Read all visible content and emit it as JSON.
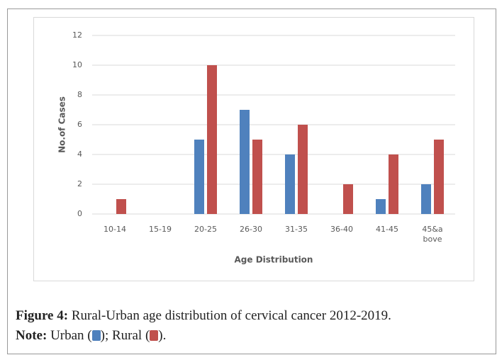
{
  "chart_data": {
    "type": "bar",
    "categories": [
      "10-14",
      "15-19",
      "20-25",
      "26-30",
      "31-35",
      "36-40",
      "41-45",
      "45&a bove"
    ],
    "series": [
      {
        "name": "Urban",
        "color": "#4f81bd",
        "values": [
          0,
          0,
          5,
          7,
          4,
          0,
          1,
          2
        ]
      },
      {
        "name": "Rural",
        "color": "#c0504d",
        "values": [
          1,
          0,
          10,
          5,
          6,
          2,
          4,
          5
        ]
      }
    ],
    "x_label": "Age Distribution",
    "y_label": "No.of Cases",
    "ylim": [
      0,
      12
    ],
    "yticks": [
      0,
      2,
      4,
      6,
      8,
      10,
      12
    ],
    "grid": true
  },
  "caption": {
    "label": "Figure 4:",
    "text": "Rural-Urban age distribution of cervical cancer 2012-2019.",
    "note_label": "Note:",
    "note_open": "(",
    "note_sep": ");",
    "note_close": ")."
  }
}
